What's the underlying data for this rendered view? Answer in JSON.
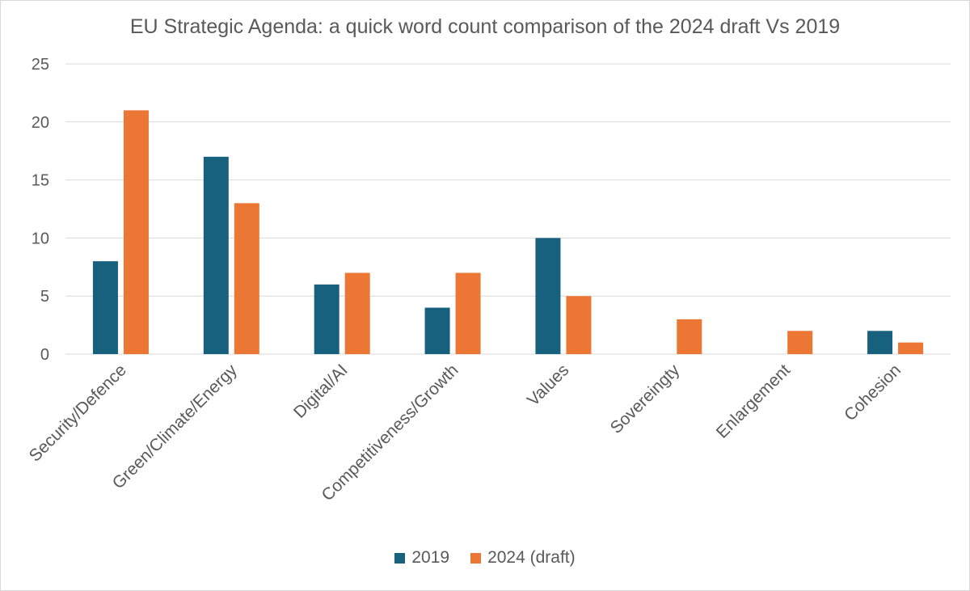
{
  "chart_data": {
    "type": "bar",
    "title": "EU Strategic Agenda: a quick word count comparison of the 2024 draft Vs 2019",
    "xlabel": "",
    "ylabel": "",
    "ylim": [
      0,
      25
    ],
    "yticks": [
      "0",
      "5",
      "10",
      "15",
      "20",
      "25"
    ],
    "grid": true,
    "legend_position": "bottom",
    "categories": [
      "Security/Defence",
      "Green/Climate/Energy",
      "Digital/AI",
      "Competitiveness/Growth",
      "Values",
      "Sovereingty",
      "Enlargement",
      "Cohesion"
    ],
    "series": [
      {
        "name": "2019",
        "color": "#17607e",
        "values": [
          8,
          17,
          6,
          4,
          10,
          0,
          0,
          2
        ]
      },
      {
        "name": "2024 (draft)",
        "color": "#ec7633",
        "values": [
          21,
          13,
          7,
          7,
          5,
          3,
          2,
          1
        ]
      }
    ]
  }
}
